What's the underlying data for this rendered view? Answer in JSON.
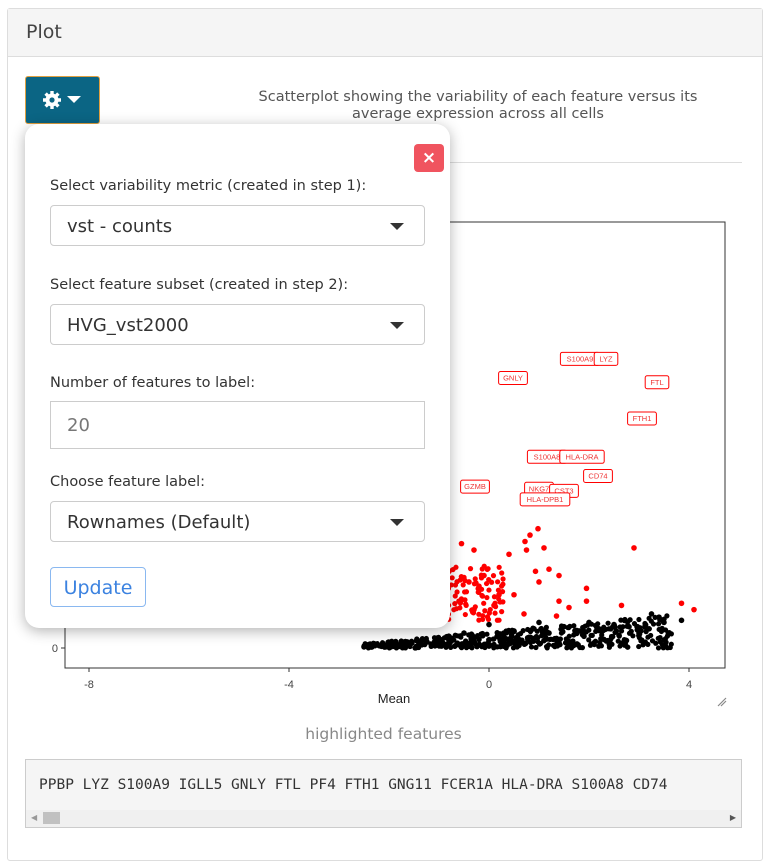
{
  "panel": {
    "title": "Plot"
  },
  "toolbar": {
    "gear_icon": "gear-icon",
    "dropdown_icon": "caret-down-icon",
    "button_color": "#0b6584"
  },
  "description": "Scatterplot showing the variability of each feature versus its average expression across all cells",
  "popup": {
    "close_label": "×",
    "metric_label": "Select variability metric (created in step 1):",
    "metric_value": "vst - counts",
    "subset_label": "Select feature subset (created in step 2):",
    "subset_value": "HVG_vst2000",
    "nlabel_label": "Number of features to label:",
    "nlabel_value": "20",
    "featlabel_label": "Choose feature label:",
    "featlabel_value": "Rownames (Default)",
    "update_label": "Update"
  },
  "chart_data": {
    "type": "scatter",
    "xlabel": "Mean",
    "x_ticks": [
      "-8",
      "-4",
      "0",
      "4"
    ],
    "y_ticks": [
      "0"
    ],
    "xlim": [
      -8.5,
      4.7
    ],
    "ylim": [
      -1,
      20
    ],
    "colors": {
      "highlighted": "#ff0000",
      "other": "#000000"
    },
    "labels": [
      {
        "text": "S100A9",
        "x": 1.82,
        "y": 13.6
      },
      {
        "text": "LYZ",
        "x": 2.34,
        "y": 13.6
      },
      {
        "text": "GNLY",
        "x": 0.48,
        "y": 12.7
      },
      {
        "text": "FTL",
        "x": 3.36,
        "y": 12.5
      },
      {
        "text": "FTH1",
        "x": 3.06,
        "y": 10.8
      },
      {
        "text": "S100A8",
        "x": 1.16,
        "y": 9.0
      },
      {
        "text": "HLA-DRA",
        "x": 1.86,
        "y": 9.0
      },
      {
        "text": "CD74",
        "x": 2.18,
        "y": 8.1
      },
      {
        "text": "GZMB",
        "x": -0.28,
        "y": 7.6
      },
      {
        "text": "NKG7",
        "x": 1.0,
        "y": 7.5
      },
      {
        "text": "CST3",
        "x": 1.5,
        "y": 7.4
      },
      {
        "text": "HLA-DPB1",
        "x": 1.12,
        "y": 7.0
      }
    ],
    "highlighted_points": [
      [
        0.98,
        5.6
      ],
      [
        0.82,
        5.3
      ],
      [
        0.72,
        5.0
      ],
      [
        1.1,
        4.7
      ],
      [
        2.9,
        4.7
      ],
      [
        -0.55,
        4.9
      ],
      [
        -0.3,
        4.6
      ],
      [
        0.4,
        4.4
      ],
      [
        0.75,
        4.6
      ],
      [
        0.93,
        3.6
      ],
      [
        1.2,
        3.7
      ],
      [
        1.4,
        3.4
      ],
      [
        1.0,
        3.1
      ],
      [
        1.95,
        2.8
      ],
      [
        3.85,
        2.1
      ],
      [
        4.1,
        1.8
      ],
      [
        2.65,
        2.0
      ],
      [
        1.4,
        2.2
      ],
      [
        1.95,
        2.2
      ],
      [
        1.6,
        1.9
      ],
      [
        -0.2,
        2.9
      ],
      [
        -0.4,
        3.1
      ],
      [
        0.2,
        2.5
      ],
      [
        0.5,
        2.5
      ],
      [
        -0.1,
        3.4
      ],
      [
        0.1,
        2.0
      ],
      [
        -0.6,
        2.2
      ],
      [
        -0.3,
        1.8
      ],
      [
        0.7,
        1.6
      ],
      [
        1.35,
        1.5
      ],
      [
        -0.8,
        3.6
      ],
      [
        -0.9,
        4.2
      ]
    ],
    "other_points": [
      [
        3.5,
        1.2
      ],
      [
        3.85,
        1.3
      ],
      [
        3.25,
        1.6
      ],
      [
        3.4,
        1.45
      ],
      [
        2.8,
        1.0
      ],
      [
        2.5,
        1.1
      ],
      [
        2.2,
        0.9
      ],
      [
        2.0,
        1.2
      ],
      [
        1.8,
        0.8
      ],
      [
        1.5,
        1.0
      ],
      [
        1.2,
        0.7
      ],
      [
        1.0,
        1.2
      ],
      [
        0.8,
        0.5
      ],
      [
        0.5,
        0.8
      ],
      [
        0.2,
        0.6
      ],
      [
        0.0,
        1.1
      ],
      [
        -0.2,
        0.4
      ],
      [
        -0.5,
        0.7
      ],
      [
        -0.8,
        0.5
      ],
      [
        -1.0,
        0.3
      ],
      [
        -1.4,
        0.2
      ],
      [
        -1.8,
        0.1
      ],
      [
        -2.5,
        0.05
      ],
      [
        0.6,
        0.2
      ],
      [
        1.6,
        0.3
      ],
      [
        2.6,
        0.6
      ],
      [
        3.0,
        0.7
      ],
      [
        2.3,
        0.4
      ],
      [
        1.9,
        0.55
      ],
      [
        1.1,
        0.35
      ],
      [
        0.3,
        0.15
      ],
      [
        -0.6,
        0.15
      ],
      [
        0.9,
        0.9
      ],
      [
        1.35,
        0.45
      ],
      [
        2.75,
        0.35
      ],
      [
        3.2,
        0.9
      ]
    ],
    "highlighted_features_title": "highlighted features"
  },
  "highlighted": {
    "title": "highlighted features",
    "text": "PPBP LYZ S100A9 IGLL5 GNLY FTL PF4 FTH1 GNG11 FCER1A HLA-DRA S100A8 CD74"
  }
}
